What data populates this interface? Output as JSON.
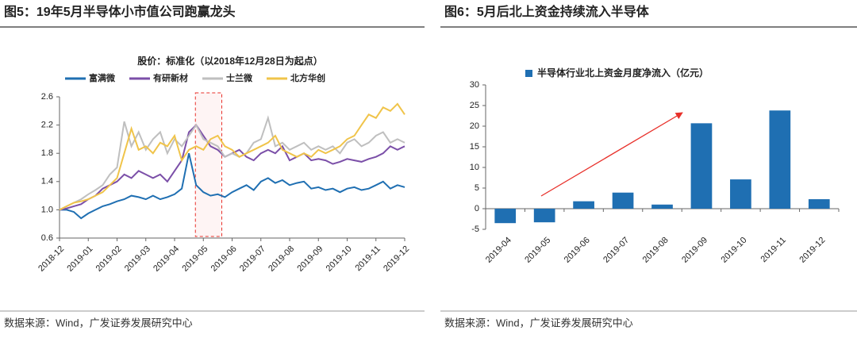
{
  "chart_data": [
    {
      "type": "line",
      "title": "图5：19年5月半导体小市值公司跑赢龙头",
      "subtitle": "股价：标准化（以2018年12月28日为起点）",
      "source": "数据来源：Wind，广发证券发展研究中心",
      "categories": [
        "2018-12",
        null,
        null,
        null,
        "2019-01",
        null,
        null,
        null,
        "2019-02",
        null,
        null,
        null,
        "2019-03",
        null,
        null,
        null,
        "2019-04",
        null,
        null,
        null,
        "2019-05",
        null,
        null,
        null,
        "2019-06",
        null,
        null,
        null,
        "2019-07",
        null,
        null,
        null,
        "2019-08",
        null,
        null,
        null,
        "2019-09",
        null,
        null,
        null,
        "2019-10",
        null,
        null,
        null,
        "2019-11",
        null,
        null,
        null,
        "2019-12"
      ],
      "series": [
        {
          "name": "富满微",
          "color": "#1f6fb2",
          "values": [
            1.0,
            1.0,
            0.97,
            0.88,
            0.95,
            1.0,
            1.05,
            1.08,
            1.12,
            1.15,
            1.2,
            1.18,
            1.15,
            1.2,
            1.15,
            1.18,
            1.22,
            1.3,
            1.8,
            1.35,
            1.25,
            1.2,
            1.22,
            1.18,
            1.25,
            1.3,
            1.35,
            1.28,
            1.4,
            1.45,
            1.38,
            1.42,
            1.35,
            1.38,
            1.4,
            1.3,
            1.32,
            1.28,
            1.3,
            1.25,
            1.3,
            1.32,
            1.28,
            1.3,
            1.35,
            1.4,
            1.3,
            1.35,
            1.32
          ]
        },
        {
          "name": "有研新材",
          "color": "#7b4fa8",
          "values": [
            1.0,
            1.02,
            1.05,
            1.08,
            1.15,
            1.2,
            1.3,
            1.35,
            1.4,
            1.5,
            1.45,
            1.55,
            1.5,
            1.45,
            1.5,
            1.4,
            1.55,
            1.7,
            2.1,
            2.2,
            2.05,
            1.9,
            1.85,
            1.75,
            1.8,
            1.85,
            1.75,
            1.7,
            1.8,
            1.85,
            1.8,
            1.9,
            1.7,
            1.75,
            1.8,
            1.7,
            1.72,
            1.7,
            1.65,
            1.68,
            1.72,
            1.7,
            1.68,
            1.72,
            1.75,
            1.8,
            1.9,
            1.85,
            1.9
          ]
        },
        {
          "name": "士兰微",
          "color": "#bfbfbf",
          "values": [
            1.0,
            1.05,
            1.1,
            1.15,
            1.22,
            1.28,
            1.35,
            1.5,
            1.6,
            2.25,
            1.9,
            2.1,
            1.85,
            2.0,
            2.1,
            1.8,
            2.0,
            1.9,
            2.05,
            2.2,
            2.0,
            1.95,
            1.9,
            1.75,
            1.8,
            1.75,
            1.8,
            1.95,
            2.0,
            2.3,
            1.9,
            1.95,
            1.85,
            1.9,
            1.95,
            1.85,
            1.9,
            1.85,
            1.9,
            1.8,
            1.95,
            2.0,
            1.9,
            1.95,
            2.05,
            2.1,
            1.95,
            2.0,
            1.95
          ]
        },
        {
          "name": "北方华创",
          "color": "#f0c44a",
          "values": [
            1.0,
            1.05,
            1.1,
            1.12,
            1.15,
            1.2,
            1.25,
            1.35,
            1.45,
            1.8,
            2.15,
            1.85,
            1.9,
            1.8,
            1.95,
            1.9,
            2.05,
            1.7,
            1.85,
            1.9,
            1.85,
            2.0,
            2.05,
            1.9,
            1.85,
            1.75,
            1.8,
            1.85,
            1.9,
            1.95,
            2.05,
            1.85,
            1.8,
            1.75,
            1.8,
            1.75,
            1.85,
            1.8,
            1.85,
            1.9,
            2.0,
            2.05,
            2.2,
            2.35,
            2.3,
            2.45,
            2.4,
            2.5,
            2.35
          ]
        }
      ],
      "ylim": [
        0.6,
        2.6
      ],
      "yticks": [
        0.6,
        {
          "value": 1,
          "label": "1.0"
        },
        1.4,
        1.8,
        2.2,
        2.6
      ],
      "legend": "top"
    },
    {
      "type": "bar",
      "title": "图6：5月后北上资金持续流入半导体",
      "source": "数据来源：Wind，广发证券发展研究中心",
      "categories": [
        "2019-04",
        "2019-05",
        "2019-06",
        "2019-07",
        "2019-08",
        "2019-09",
        "2019-10",
        "2019-11",
        "2019-12"
      ],
      "series": [
        {
          "name": "半导体行业北上资金月度净流入（亿元）",
          "color": "#1f6fb2",
          "values": [
            -3.5,
            -3.3,
            1.8,
            3.9,
            1.0,
            20.7,
            7.1,
            23.8,
            2.3
          ]
        }
      ],
      "ylim": [
        -5,
        30
      ],
      "yticks": [
        -5,
        0,
        5,
        10,
        15,
        20,
        25,
        30
      ],
      "legend": "top"
    }
  ]
}
